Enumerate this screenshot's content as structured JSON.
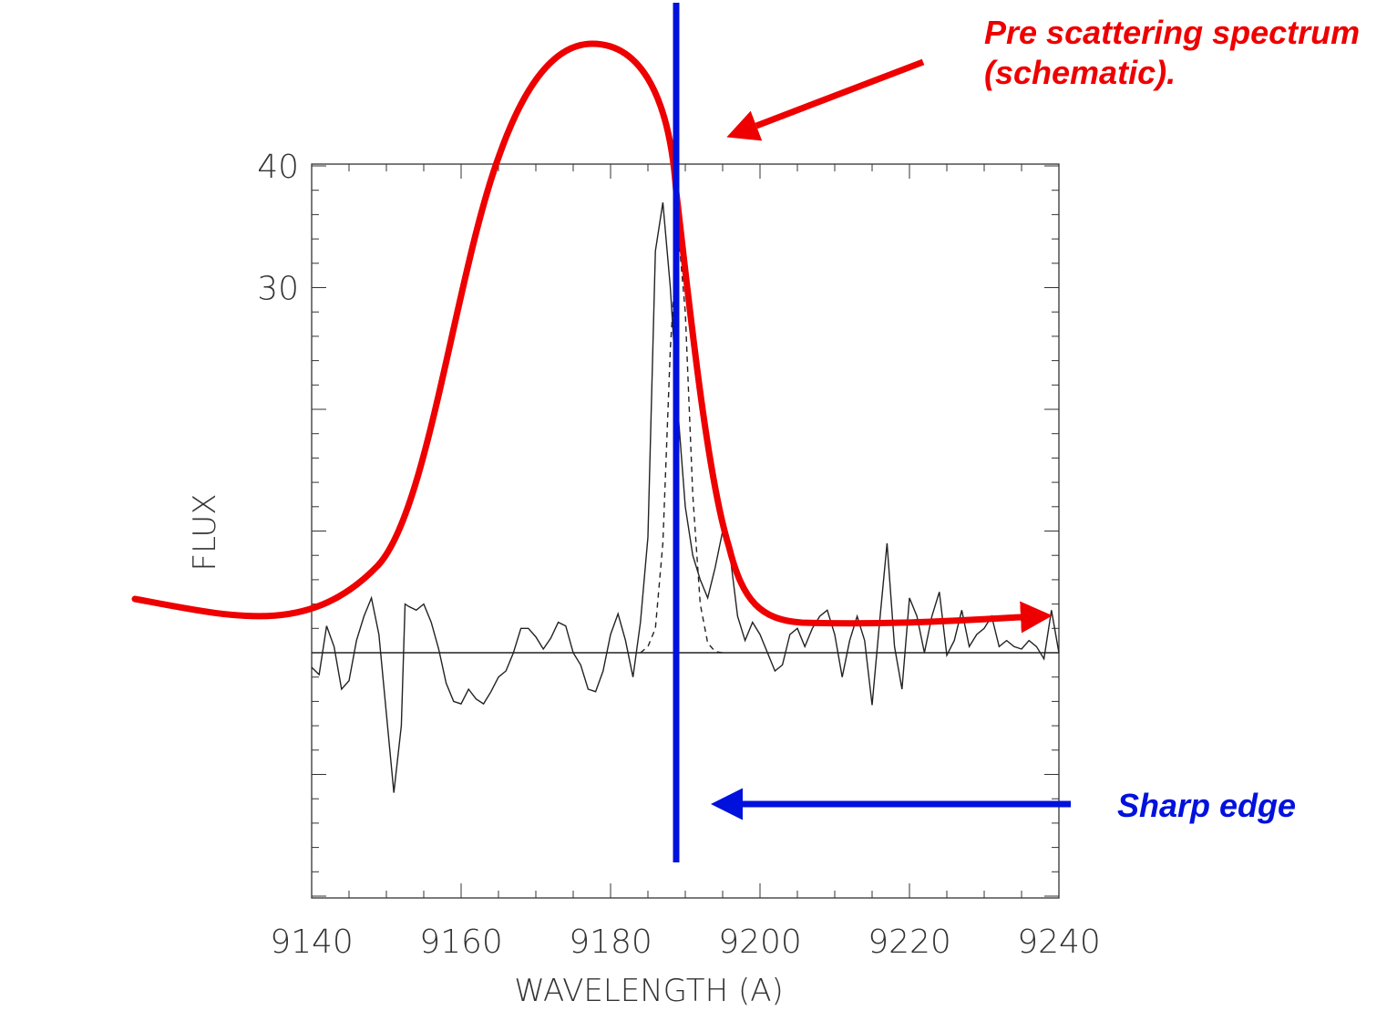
{
  "chart_data": {
    "type": "line",
    "title": "",
    "xlabel": "WAVELENGTH (A)",
    "ylabel": "FLUX",
    "xlim": [
      9140,
      9240
    ],
    "ylim": [
      -20,
      40
    ],
    "x_ticks": [
      "9140",
      "9160",
      "9180",
      "9200",
      "9220",
      "9240"
    ],
    "y_ticks": [
      "30",
      "40"
    ],
    "grid": false,
    "series": [
      {
        "style": "solid thin black",
        "x": [
          9140,
          9141,
          9142,
          9143,
          9144,
          9145,
          9146,
          9147,
          9148,
          9149,
          9150,
          9151,
          9152,
          9152.5,
          9153,
          9154,
          9155,
          9156,
          9157,
          9158,
          9159,
          9160,
          9161,
          9162,
          9163,
          9164,
          9165,
          9166,
          9167,
          9168,
          9169,
          9170,
          9171,
          9172,
          9173,
          9174,
          9175,
          9176,
          9177,
          9178,
          9179,
          9180,
          9181,
          9182,
          9183,
          9184,
          9185,
          9186,
          9187,
          9188,
          9189,
          9190,
          9191,
          9192,
          9193,
          9194,
          9195,
          9196,
          9197,
          9198,
          9199,
          9200,
          9201,
          9202,
          9203,
          9204,
          9205,
          9206,
          9207,
          9208,
          9209,
          9210,
          9211,
          9212,
          9213,
          9214,
          9215,
          9216,
          9217,
          9218,
          9219,
          9220,
          9221,
          9222,
          9223,
          9224,
          9225,
          9226,
          9227,
          9228,
          9229,
          9230,
          9231,
          9232,
          9233,
          9234,
          9235,
          9236,
          9237,
          9238,
          9239,
          9240
        ],
        "y": [
          -1.2,
          -1.8,
          2.2,
          0.5,
          -3.0,
          -2.3,
          1.0,
          3.0,
          4.5,
          1.5,
          -5.0,
          -11.5,
          -6.0,
          4.0,
          3.8,
          3.5,
          4.0,
          2.5,
          0.3,
          -2.5,
          -4.0,
          -4.2,
          -3.0,
          -3.8,
          -4.2,
          -3.2,
          -2.0,
          -1.5,
          0.0,
          2.0,
          2.0,
          1.3,
          0.3,
          1.2,
          2.5,
          2.2,
          0.0,
          -1.0,
          -3.0,
          -3.2,
          -1.5,
          1.5,
          3.2,
          1.0,
          -2.0,
          2.5,
          9.5,
          33.0,
          37.0,
          30.0,
          20.0,
          12.0,
          8.0,
          6.0,
          4.5,
          7.0,
          10.0,
          8.0,
          3.0,
          1.0,
          2.5,
          1.5,
          0.0,
          -1.5,
          -1.0,
          1.5,
          2.0,
          0.5,
          2.0,
          3.0,
          3.5,
          1.5,
          -2.0,
          1.0,
          3.0,
          1.0,
          -4.3,
          2.5,
          9.0,
          0.5,
          -3.0,
          4.5,
          3.0,
          0.0,
          3.0,
          5.0,
          -0.2,
          1.0,
          3.5,
          0.5,
          1.5,
          2.0,
          3.0,
          0.5,
          1.0,
          0.5,
          0.3,
          1.0,
          0.5,
          -0.5,
          3.5,
          0.0
        ],
        "y_pixel_note": ""
      },
      {
        "style": "dashed thin black",
        "x": [
          9184,
          9185,
          9186,
          9187,
          9188,
          9189,
          9190,
          9191,
          9192,
          9193,
          9194,
          9195
        ],
        "y": [
          0.0,
          0.5,
          2.0,
          9.0,
          25.0,
          35.0,
          28.0,
          13.0,
          4.0,
          0.8,
          0.1,
          0.0
        ]
      },
      {
        "style": "solid thin black",
        "x": [
          9140,
          9240
        ],
        "y": [
          0,
          0
        ]
      }
    ],
    "overlay_annotations": {
      "schematic_curve_color": "#ee0000",
      "sharp_edge_color": "#0011dd",
      "pre_scattering_text": [
        "Pre scattering spectrum",
        "(schematic)."
      ],
      "sharp_edge_text": "Sharp edge"
    }
  }
}
